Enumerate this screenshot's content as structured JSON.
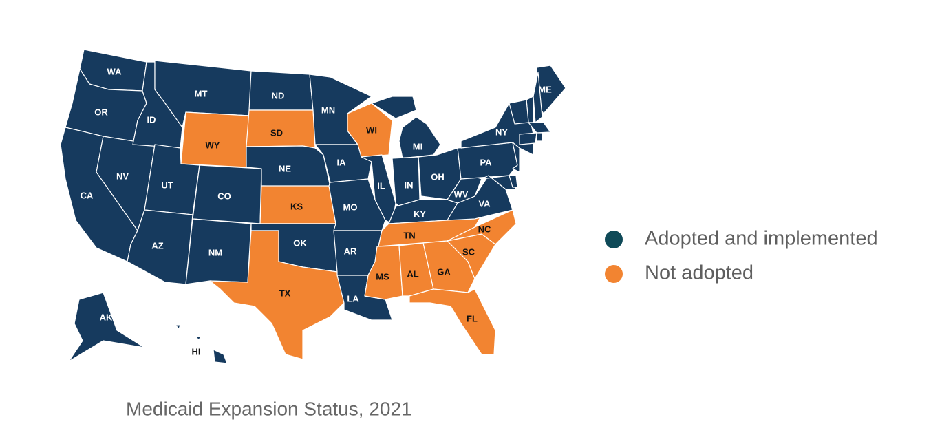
{
  "legend": [
    {
      "label": "Adopted and implemented",
      "color": "#0f4a58",
      "map_color": "#163a5e"
    },
    {
      "label": "Not adopted",
      "color": "#f28431",
      "map_color": "#f28431"
    }
  ],
  "caption": "Medicaid Expansion Status, 2021",
  "states": [
    {
      "label": "WA",
      "adopted": true
    },
    {
      "label": "OR",
      "adopted": true
    },
    {
      "label": "CA",
      "adopted": true
    },
    {
      "label": "NV",
      "adopted": true
    },
    {
      "label": "ID",
      "adopted": true
    },
    {
      "label": "MT",
      "adopted": true
    },
    {
      "label": "WY",
      "adopted": false
    },
    {
      "label": "UT",
      "adopted": true
    },
    {
      "label": "CO",
      "adopted": true
    },
    {
      "label": "AZ",
      "adopted": true
    },
    {
      "label": "NM",
      "adopted": true
    },
    {
      "label": "ND",
      "adopted": true
    },
    {
      "label": "SD",
      "adopted": false
    },
    {
      "label": "NE",
      "adopted": true
    },
    {
      "label": "KS",
      "adopted": false
    },
    {
      "label": "OK",
      "adopted": true
    },
    {
      "label": "TX",
      "adopted": false
    },
    {
      "label": "MN",
      "adopted": true
    },
    {
      "label": "IA",
      "adopted": true
    },
    {
      "label": "MO",
      "adopted": true
    },
    {
      "label": "AR",
      "adopted": true
    },
    {
      "label": "LA",
      "adopted": true
    },
    {
      "label": "WI",
      "adopted": false
    },
    {
      "label": "IL",
      "adopted": true
    },
    {
      "label": "MI",
      "adopted": true
    },
    {
      "label": "IN",
      "adopted": true
    },
    {
      "label": "OH",
      "adopted": true
    },
    {
      "label": "KY",
      "adopted": true
    },
    {
      "label": "TN",
      "adopted": false
    },
    {
      "label": "MS",
      "adopted": false
    },
    {
      "label": "AL",
      "adopted": false
    },
    {
      "label": "GA",
      "adopted": false
    },
    {
      "label": "FL",
      "adopted": false
    },
    {
      "label": "SC",
      "adopted": false
    },
    {
      "label": "NC",
      "adopted": false
    },
    {
      "label": "VA",
      "adopted": true
    },
    {
      "label": "WV",
      "adopted": true
    },
    {
      "label": "PA",
      "adopted": true
    },
    {
      "label": "NY",
      "adopted": true
    },
    {
      "label": "ME",
      "adopted": true
    },
    {
      "label": "AK",
      "adopted": true
    },
    {
      "label": "HI",
      "adopted": true
    },
    {
      "adopted": true
    },
    {
      "adopted": true
    },
    {
      "adopted": true
    },
    {
      "adopted": true
    },
    {
      "adopted": true
    },
    {
      "adopted": true
    },
    {
      "adopted": true
    },
    {
      "adopted": true
    },
    {
      "adopted": true
    }
  ]
}
